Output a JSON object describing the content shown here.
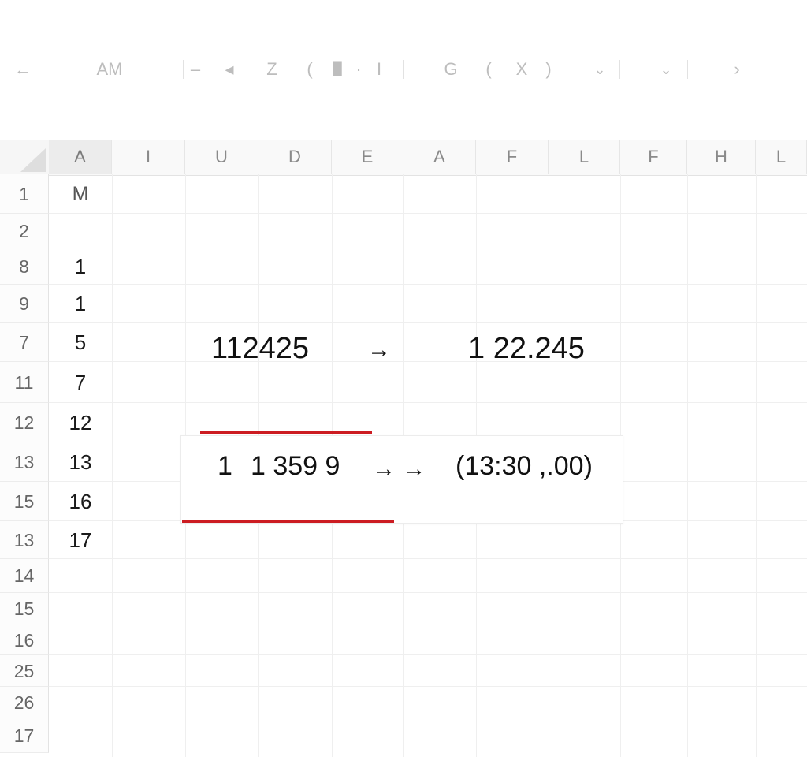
{
  "toolbar": {
    "back": "←",
    "name_box": "AM",
    "dash": "–",
    "tri": "◂",
    "z": "Z",
    "paren_open_1": "(",
    "tool_a": "█",
    "dot": "·",
    "bar": "I",
    "g": "G",
    "paren_open_2": "(",
    "x": "X",
    "paren_close": ")",
    "chev1": "⌄",
    "chev2": "⌄",
    "next": "›"
  },
  "columns": [
    "A",
    "I",
    "U",
    "D",
    "E",
    "A",
    "F",
    "L",
    "F",
    "H",
    "L"
  ],
  "rows": [
    "1",
    "2",
    "8",
    "9",
    "7",
    "11",
    "12",
    "13",
    "15",
    "13",
    "14",
    "15",
    "16",
    "25",
    "26",
    "17"
  ],
  "col_a_values": [
    "M",
    "",
    "1",
    "1",
    "5",
    "7",
    "12",
    "13",
    "16",
    "17"
  ],
  "conversion_1": {
    "from": "112425",
    "arrow": "→",
    "to": "1 22.245"
  },
  "conversion_2": {
    "prefix": "1",
    "from": "1 359 9",
    "arrow": "→ →",
    "to": "(13:30 ,.00)"
  },
  "colors": {
    "accent_red": "#cc1c22",
    "grid_line": "#efefef",
    "header_bg": "#f9f9f9",
    "selected_header_bg": "#ececec"
  }
}
